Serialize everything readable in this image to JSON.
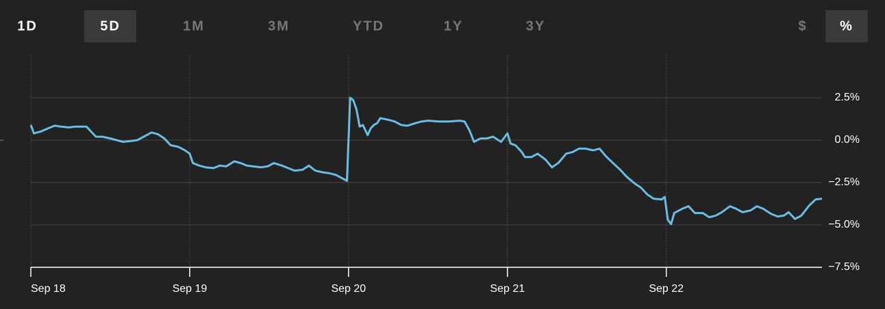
{
  "tabs": {
    "ranges": [
      {
        "label": "1D"
      },
      {
        "label": "5D",
        "active": true
      },
      {
        "label": "1M"
      },
      {
        "label": "3M"
      },
      {
        "label": "YTD"
      },
      {
        "label": "1Y"
      },
      {
        "label": "3Y"
      }
    ],
    "units": [
      {
        "label": "$"
      },
      {
        "label": "%",
        "active": true
      }
    ]
  },
  "chart_data": {
    "type": "line",
    "color": "#6cbde6",
    "grid": true,
    "xlim": [
      0,
      4.98
    ],
    "ylim": [
      -7.5,
      5
    ],
    "xticks": [
      {
        "value": 0,
        "label": "Sep 18"
      },
      {
        "value": 1,
        "label": "Sep 19"
      },
      {
        "value": 2,
        "label": "Sep 20"
      },
      {
        "value": 3,
        "label": "Sep 21"
      },
      {
        "value": 4,
        "label": "Sep 22"
      }
    ],
    "yticks": [
      {
        "value": 2.5,
        "label": "2.5%"
      },
      {
        "value": 0,
        "label": "0.0%"
      },
      {
        "value": -2.5,
        "label": "−2.5%"
      },
      {
        "value": -5,
        "label": "−5.0%"
      },
      {
        "value": -7.5,
        "label": "−7.5%"
      }
    ],
    "x": [
      0,
      0.02,
      0.06,
      0.11,
      0.15,
      0.19,
      0.24,
      0.28,
      0.35,
      0.37,
      0.41,
      0.45,
      0.5,
      0.54,
      0.58,
      0.63,
      0.67,
      0.71,
      0.76,
      0.8,
      0.84,
      0.88,
      0.93,
      0.97,
      1.0,
      1.02,
      1.06,
      1.1,
      1.15,
      1.19,
      1.23,
      1.28,
      1.32,
      1.36,
      1.4,
      1.45,
      1.49,
      1.53,
      1.58,
      1.62,
      1.66,
      1.71,
      1.75,
      1.79,
      1.84,
      1.88,
      1.92,
      1.96,
      1.99,
      2.01,
      2.03,
      2.05,
      2.07,
      2.09,
      2.12,
      2.14,
      2.16,
      2.18,
      2.2,
      2.25,
      2.29,
      2.33,
      2.37,
      2.42,
      2.46,
      2.5,
      2.57,
      2.63,
      2.7,
      2.73,
      2.76,
      2.79,
      2.83,
      2.87,
      2.91,
      2.96,
      3.0,
      3.02,
      3.05,
      3.09,
      3.11,
      3.15,
      3.19,
      3.24,
      3.28,
      3.32,
      3.37,
      3.41,
      3.45,
      3.49,
      3.54,
      3.58,
      3.62,
      3.67,
      3.71,
      3.75,
      3.8,
      3.84,
      3.88,
      3.92,
      3.97,
      3.99,
      4.01,
      4.03,
      4.05,
      4.1,
      4.14,
      4.18,
      4.23,
      4.27,
      4.31,
      4.35,
      4.4,
      4.44,
      4.48,
      4.53,
      4.57,
      4.61,
      4.66,
      4.7,
      4.74,
      4.77,
      4.81,
      4.85,
      4.9,
      4.94,
      4.98
    ],
    "values": [
      0.9,
      0.4,
      0.5,
      0.7,
      0.85,
      0.8,
      0.75,
      0.8,
      0.8,
      0.6,
      0.2,
      0.2,
      0.1,
      0,
      -0.1,
      -0.05,
      0,
      0.2,
      0.45,
      0.35,
      0.1,
      -0.3,
      -0.4,
      -0.6,
      -0.8,
      -1.35,
      -1.5,
      -1.6,
      -1.65,
      -1.5,
      -1.55,
      -1.25,
      -1.35,
      -1.5,
      -1.55,
      -1.6,
      -1.55,
      -1.35,
      -1.5,
      -1.65,
      -1.8,
      -1.75,
      -1.5,
      -1.8,
      -1.9,
      -1.95,
      -2.05,
      -2.25,
      -2.4,
      2.5,
      2.35,
      1.8,
      0.8,
      0.9,
      0.3,
      0.7,
      0.9,
      1.0,
      1.3,
      1.2,
      1.1,
      0.9,
      0.85,
      1.0,
      1.1,
      1.15,
      1.1,
      1.1,
      1.15,
      1.1,
      0.6,
      -0.1,
      0.1,
      0.1,
      0.2,
      -0.1,
      0.4,
      -0.2,
      -0.3,
      -0.7,
      -1.0,
      -1.0,
      -0.8,
      -1.15,
      -1.6,
      -1.35,
      -0.8,
      -0.7,
      -0.5,
      -0.5,
      -0.6,
      -0.5,
      -0.95,
      -1.4,
      -1.75,
      -2.15,
      -2.55,
      -2.8,
      -3.2,
      -3.45,
      -3.5,
      -3.35,
      -4.7,
      -4.95,
      -4.3,
      -4.05,
      -3.9,
      -4.3,
      -4.3,
      -4.55,
      -4.45,
      -4.25,
      -3.9,
      -4.05,
      -4.25,
      -4.15,
      -3.9,
      -4.05,
      -4.35,
      -4.5,
      -4.45,
      -4.25,
      -4.65,
      -4.45,
      -3.85,
      -3.5,
      -3.45
    ]
  }
}
